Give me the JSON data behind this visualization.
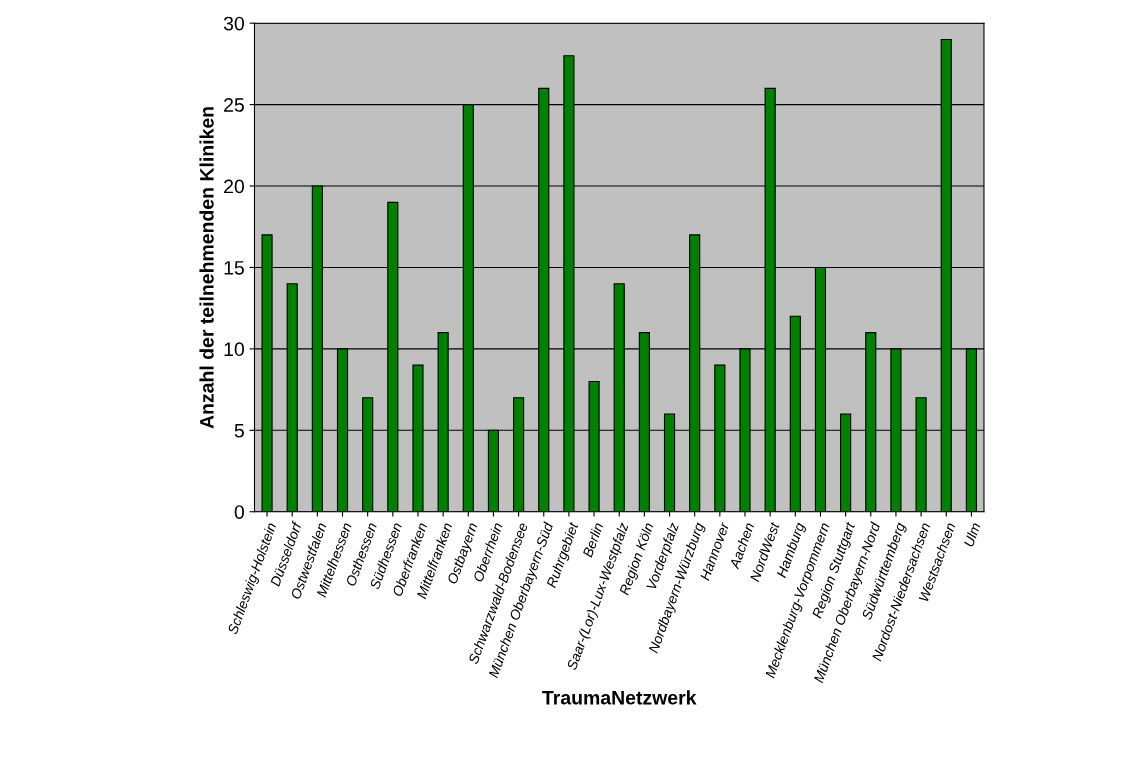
{
  "chart_data": {
    "type": "bar",
    "xlabel": "TraumaNetzwerk",
    "ylabel": "Anzahl der teilnehmenden Kliniken",
    "categories": [
      "Schleswig-Holstein",
      "Düsseldorf",
      "Ostwestfalen",
      "Mittelhessen",
      "Osthessen",
      "Südhessen",
      "Oberfranken",
      "Mittelfranken",
      "Ostbayern",
      "Oberrhein",
      "Schwarzwald-Bodensee",
      "München Oberbayern-Süd",
      "Ruhrgebiet",
      "Berlin",
      "Saar-(Lor)-Lux-Westpfalz",
      "Region Köln",
      "Vorderpfalz",
      "Nordbayern-Würzburg",
      "Hannover",
      "Aachen",
      "NordWest",
      "Hamburg",
      "Mecklenburg-Vorpommern",
      "Region Stuttgart",
      "München Oberbayern-Nord",
      "Südwürttemberg",
      "Nordost-Niedersachsen",
      "Westsachsen",
      "Ulm"
    ],
    "values": [
      17,
      14,
      20,
      10,
      7,
      19,
      9,
      11,
      25,
      5,
      7,
      26,
      28,
      8,
      14,
      11,
      6,
      17,
      9,
      10,
      26,
      12,
      15,
      6,
      11,
      10,
      7,
      29,
      10
    ],
    "color": "#008000",
    "ylim": [
      0,
      30
    ],
    "yticks": [
      0,
      5,
      10,
      15,
      20,
      25,
      30
    ],
    "grid": "y"
  }
}
